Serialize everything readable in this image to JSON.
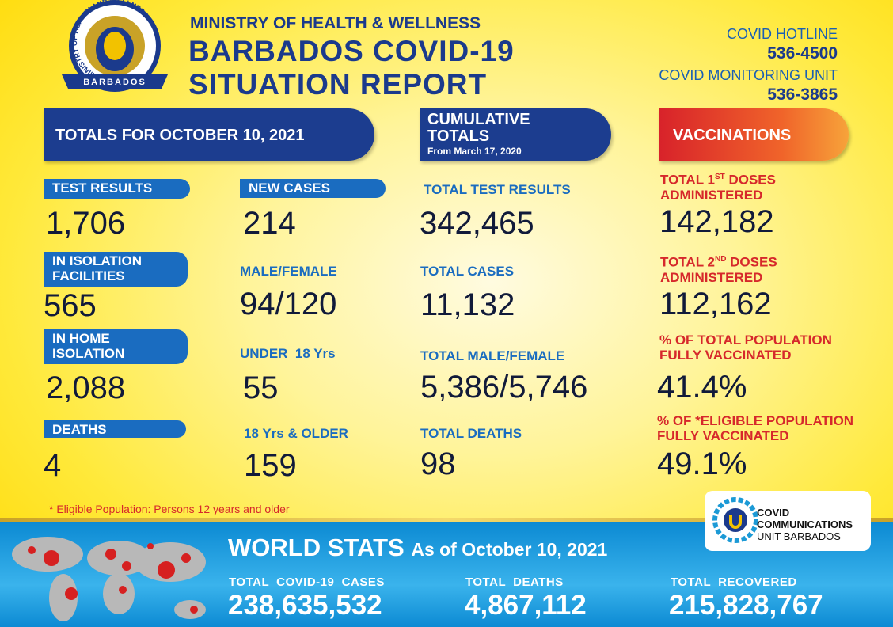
{
  "header": {
    "logo_ring": "MINISTRY OF HEALTH AND WELLNESS",
    "logo_country": "BARBADOS",
    "ministry": "MINISTRY OF HEALTH & WELLNESS",
    "title_line1": "BARBADOS COVID-19",
    "title_line2": "SITUATION REPORT"
  },
  "contacts": {
    "hotline_label": "COVID HOTLINE",
    "hotline": "536-4500",
    "unit_label": "COVID MONITORING UNIT",
    "unit": "536-3865"
  },
  "daily": {
    "title": "TOTALS FOR OCTOBER 10, 2021",
    "test_results": {
      "label": "TEST RESULTS",
      "value": "1,706"
    },
    "isolation_facilities": {
      "label": "IN ISOLATION FACILITIES",
      "value": "565"
    },
    "home_isolation": {
      "label": "IN HOME ISOLATION",
      "value": "2,088"
    },
    "deaths": {
      "label": "DEATHS",
      "value": "4"
    },
    "new_cases": {
      "label": "NEW CASES",
      "value": "214"
    },
    "male_female": {
      "label": "MALE/FEMALE",
      "value": "94/120"
    },
    "under_18": {
      "label": "UNDER  18 Yrs",
      "value": "55"
    },
    "over_18": {
      "label": "18 Yrs & OLDER",
      "value": "159"
    }
  },
  "cumulative": {
    "title": "CUMULATIVE TOTALS",
    "subtitle": "From March 17, 2020",
    "test_results": {
      "label": "TOTAL TEST RESULTS",
      "value": "342,465"
    },
    "cases": {
      "label": "TOTAL CASES",
      "value": "11,132"
    },
    "male_female": {
      "label": "TOTAL MALE/FEMALE",
      "value": "5,386/5,746"
    },
    "deaths": {
      "label": "TOTAL DEATHS",
      "value": "98"
    }
  },
  "vaccinations": {
    "title": "VACCINATIONS",
    "first_doses": {
      "label_pre": "TOTAL 1",
      "label_sup": "ST",
      "label_post": " DOSES ADMINISTERED",
      "value": "142,182"
    },
    "second_doses": {
      "label_pre": "TOTAL 2",
      "label_sup": "ND",
      "label_post": " DOSES ADMINISTERED",
      "value": "112,162"
    },
    "population_pct": {
      "label": "% OF TOTAL POPULATION FULLY VACCINATED",
      "value": "41.4%"
    },
    "eligible_pct": {
      "label": "% OF *ELIGIBLE POPULATION FULLY VACCINATED",
      "value": "49.1%"
    }
  },
  "footnote": "* Eligible Population: Persons 12 years and older",
  "comms_logo": {
    "line1": "COVID",
    "line2": "COMMUNICATIONS",
    "line3": "UNIT BARBADOS"
  },
  "world": {
    "title": "WORLD STATS",
    "subtitle": "As of October 10, 2021",
    "cases": {
      "label": "TOTAL  COVID-19  CASES",
      "value": "238,635,532"
    },
    "deaths": {
      "label": "TOTAL  DEATHS",
      "value": "4,867,112"
    },
    "recovered": {
      "label": "TOTAL  RECOVERED",
      "value": "215,828,767"
    }
  }
}
